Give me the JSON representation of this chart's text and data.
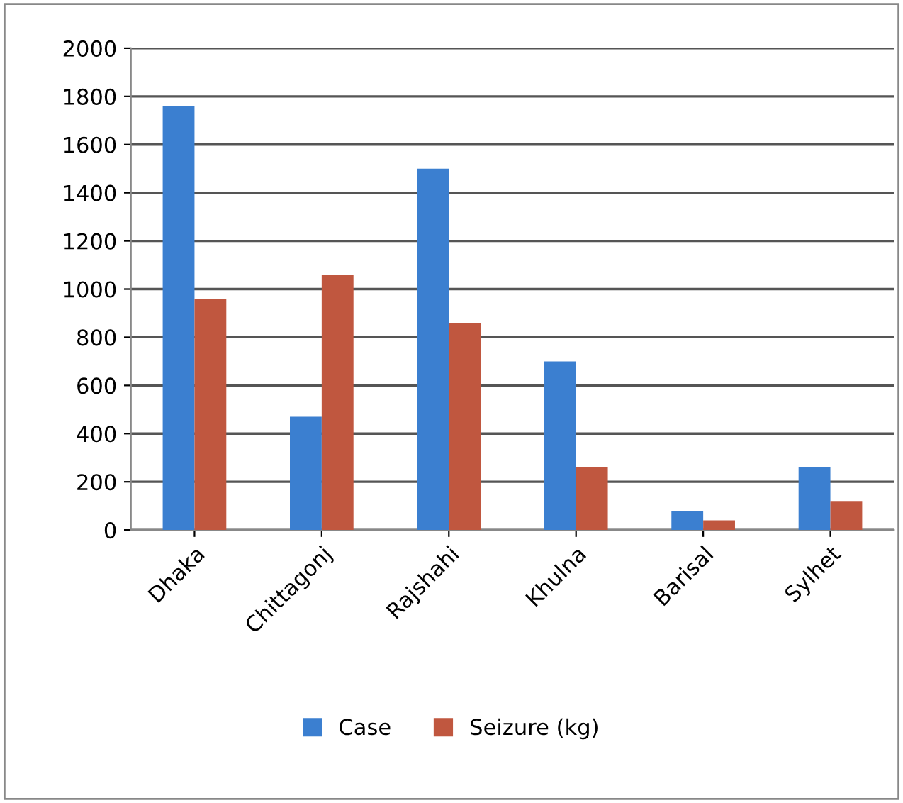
{
  "chart_data": {
    "type": "bar",
    "categories": [
      "Dhaka",
      "Chittagonj",
      "Rajshahi",
      "Khulna",
      "Barisal",
      "Sylhet"
    ],
    "series": [
      {
        "name": "Case",
        "color": "#3b7fd0",
        "values": [
          1760,
          470,
          1500,
          700,
          80,
          260
        ]
      },
      {
        "name": "Seizure (kg)",
        "color": "#c0573f",
        "values": [
          960,
          1060,
          860,
          260,
          40,
          120
        ]
      }
    ],
    "ylim": [
      0,
      2000
    ],
    "yticks": [
      0,
      200,
      400,
      600,
      800,
      1000,
      1200,
      1400,
      1600,
      1800,
      2000
    ],
    "grid": "y",
    "legend": "bottom"
  }
}
